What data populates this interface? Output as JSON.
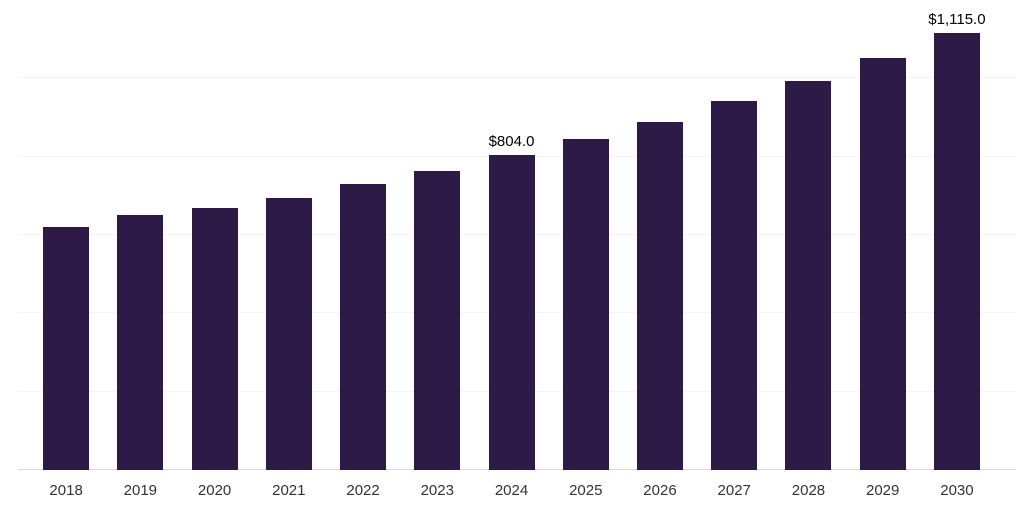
{
  "chart_data": {
    "type": "bar",
    "title": "",
    "xlabel": "",
    "ylabel": "",
    "categories": [
      "2018",
      "2019",
      "2020",
      "2021",
      "2022",
      "2023",
      "2024",
      "2025",
      "2026",
      "2027",
      "2028",
      "2029",
      "2030"
    ],
    "values": [
      620,
      650,
      670,
      694,
      730,
      763,
      804,
      845,
      888,
      941,
      993,
      1051,
      1115
    ],
    "data_labels": {
      "2024": "$804.0",
      "2030": "$1,115.0"
    },
    "ylim": [
      0,
      1200
    ],
    "gridline_step": 200,
    "grid": "on",
    "legend": "none",
    "bar_color": "#2e1a47",
    "axis_line_color": "#d9d9d9",
    "gridline_color": "#f4f3f6",
    "tick_label_color": "#333333",
    "value_label_color": "#000000"
  }
}
